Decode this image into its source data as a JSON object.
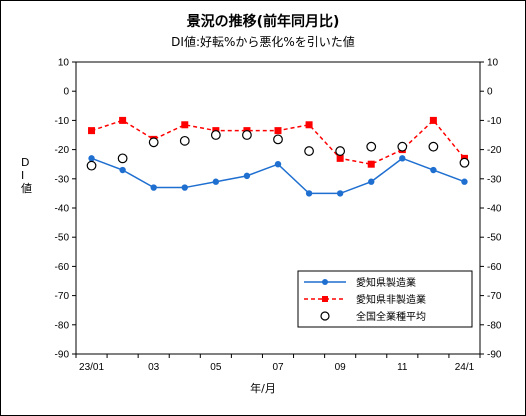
{
  "chart_data": {
    "type": "line",
    "title": "景況の推移(前年同月比)",
    "subtitle": "DI値:好転%から悪化%を引いた値",
    "ylabel": "D I 値",
    "xlabel": "年/月",
    "ylim": [
      -90,
      10
    ],
    "yticks": [
      10,
      0,
      -10,
      -20,
      -30,
      -40,
      -50,
      -60,
      -70,
      -80,
      -90
    ],
    "x_tick_labels": [
      "23/01",
      "",
      "03",
      "",
      "05",
      "",
      "07",
      "",
      "09",
      "",
      "11",
      "",
      "24/1"
    ],
    "legend_position": "bottom-right",
    "series": [
      {
        "name": "愛知県製造業",
        "color": "#1f6fd0",
        "style": "solid-line-filled-circle",
        "values": [
          -23,
          -27,
          -33,
          -33,
          -31,
          -29,
          -25,
          -35,
          -35,
          -31,
          -23,
          -27,
          -31
        ]
      },
      {
        "name": "愛知県非製造業",
        "color": "#ff0000",
        "style": "dashed-line-filled-square",
        "values": [
          -13.5,
          -10,
          -16.5,
          -11.5,
          -13.5,
          -13.5,
          -13.5,
          -11.5,
          -23,
          -25,
          -20,
          -10,
          -23
        ]
      },
      {
        "name": "全国全業種平均",
        "color": "#000000",
        "style": "open-circle-markers",
        "values": [
          -25.5,
          -23,
          -17.5,
          -17,
          -15,
          -15,
          -16.5,
          -20.5,
          -20.5,
          -19,
          -19,
          -19,
          -24.5
        ]
      }
    ]
  }
}
